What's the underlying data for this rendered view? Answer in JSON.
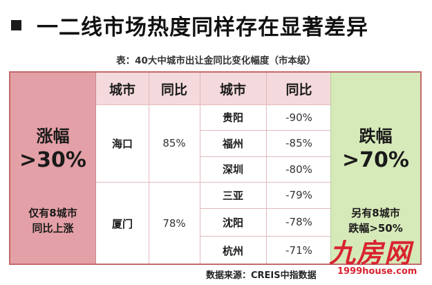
{
  "header": {
    "title": "一二线市场热度同样存在显著差异"
  },
  "subtitle": "表：40大中城市出让金同比变化幅度（市本级）",
  "left_panel": {
    "line1": "涨幅",
    "line2": ">30%",
    "note_line1": "仅有8城市",
    "note_line2": "同比上涨"
  },
  "right_panel": {
    "line1": "跌幅",
    "line2": ">70%",
    "note_line1": "另有8城市",
    "note_line2": "跌幅>50%"
  },
  "columns": {
    "city": "城市",
    "yoy": "同比"
  },
  "rising": [
    {
      "city": "海口",
      "yoy": "85%"
    },
    {
      "city": "厦门",
      "yoy": "78%"
    }
  ],
  "falling": [
    {
      "city": "贵阳",
      "yoy": "-90%"
    },
    {
      "city": "福州",
      "yoy": "-85%"
    },
    {
      "city": "深圳",
      "yoy": "-80%"
    },
    {
      "city": "三亚",
      "yoy": "-79%"
    },
    {
      "city": "沈阳",
      "yoy": "-78%"
    },
    {
      "city": "杭州",
      "yoy": "-71%"
    }
  ],
  "source": "数据来源：CREIS中指数据",
  "watermark": {
    "brand": "九房网",
    "url": "1999house.com"
  }
}
